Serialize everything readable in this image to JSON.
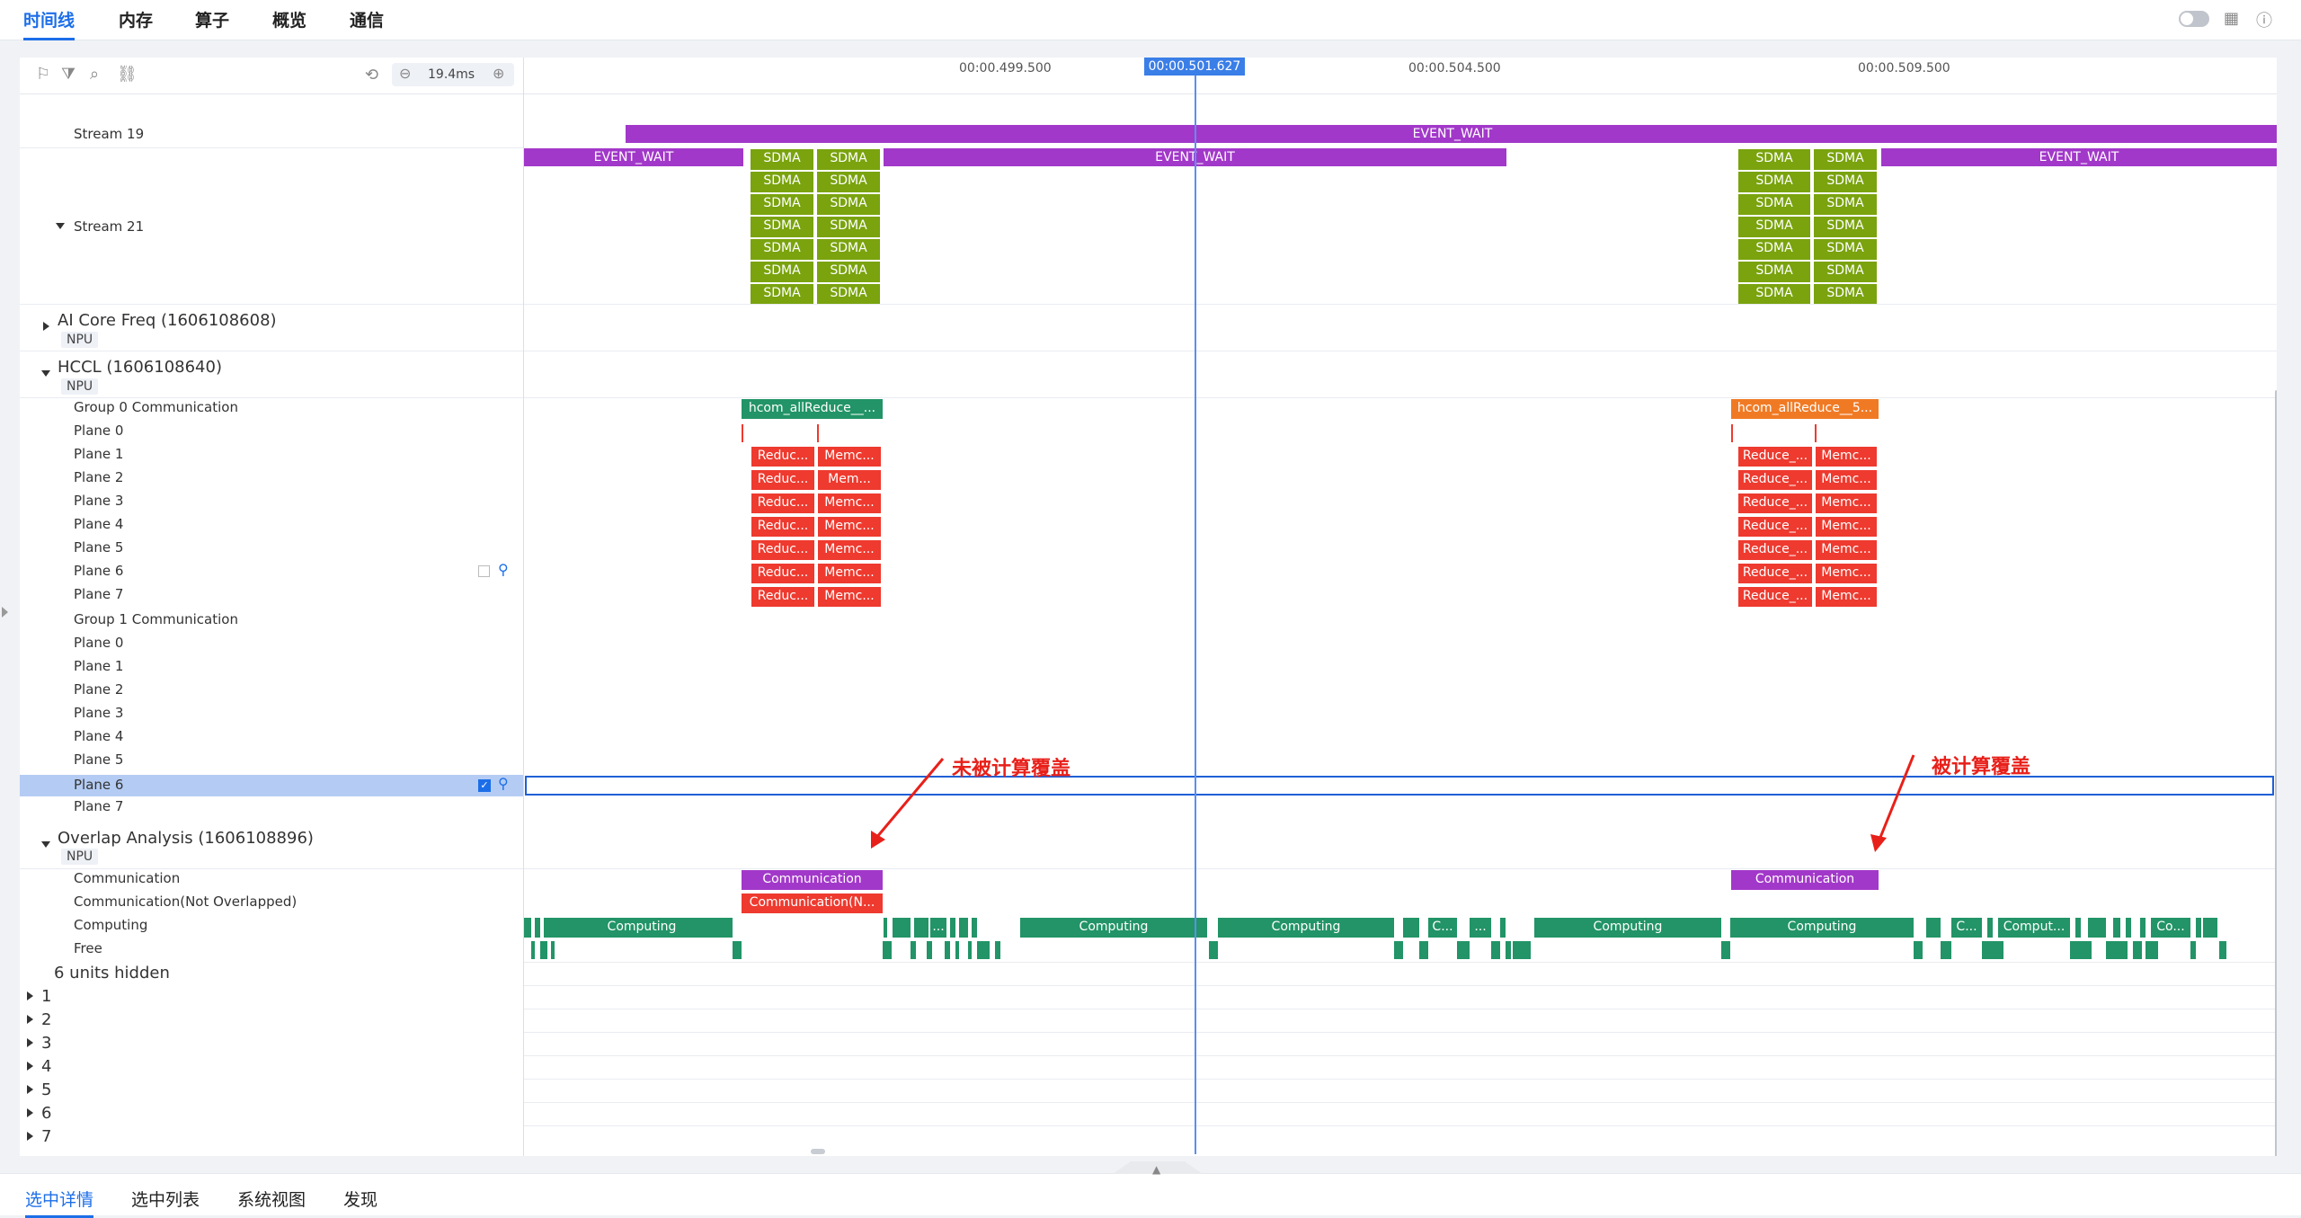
{
  "top_tabs": [
    "时间线",
    "内存",
    "算子",
    "概览",
    "通信"
  ],
  "toolbar": {
    "zoom": "19.4ms"
  },
  "timeline": {
    "ticks": [
      "00:00.499.500",
      "00:00.504.500",
      "00:00.509.500"
    ],
    "cursor": "00:00.501.627"
  },
  "tracks": {
    "stream19": "Stream 19",
    "stream21": "Stream 21",
    "aicore": "AI Core Freq (1606108608)",
    "hccl": "HCCL (1606108640)",
    "npu": "NPU",
    "group0": "Group 0 Communication",
    "group1": "Group 1 Communication",
    "planes": [
      "Plane 0",
      "Plane 1",
      "Plane 2",
      "Plane 3",
      "Plane 4",
      "Plane 5",
      "Plane 6",
      "Plane 7"
    ],
    "overlap": "Overlap Analysis (1606108896)",
    "comm": "Communication",
    "comm_no": "Communication(Not Overlapped)",
    "computing": "Computing",
    "free": "Free",
    "hidden": "6 units hidden",
    "units": [
      "1",
      "2",
      "3",
      "4",
      "5",
      "6",
      "7"
    ]
  },
  "slices": {
    "event_wait": "EVENT_WAIT",
    "sdma": "SDMA",
    "hcom1": "hcom_allReduce__...",
    "hcom2": "hcom_allReduce__5...",
    "reduc": "Reduc...",
    "reduce": "Reduce_...",
    "memc": "Memc...",
    "mem": "Mem...",
    "communication": "Communication",
    "comm_n": "Communication(N...",
    "computing": "Computing",
    "c": "C...",
    "dots": "...",
    "comput": "Comput...",
    "co": "Co..."
  },
  "annotations": {
    "left": "未被计算覆盖",
    "right": "被计算覆盖"
  },
  "bottom_tabs": [
    "选中详情",
    "选中列表",
    "系统视图",
    "发现"
  ],
  "colors": {
    "accent": "#1c6ee8",
    "event_wait": "#a238c9",
    "sdma": "#7aa30e",
    "computing": "#229467",
    "reduce": "#ee3a2f",
    "hcom2": "#f07a24",
    "annotation": "#e8201a"
  }
}
